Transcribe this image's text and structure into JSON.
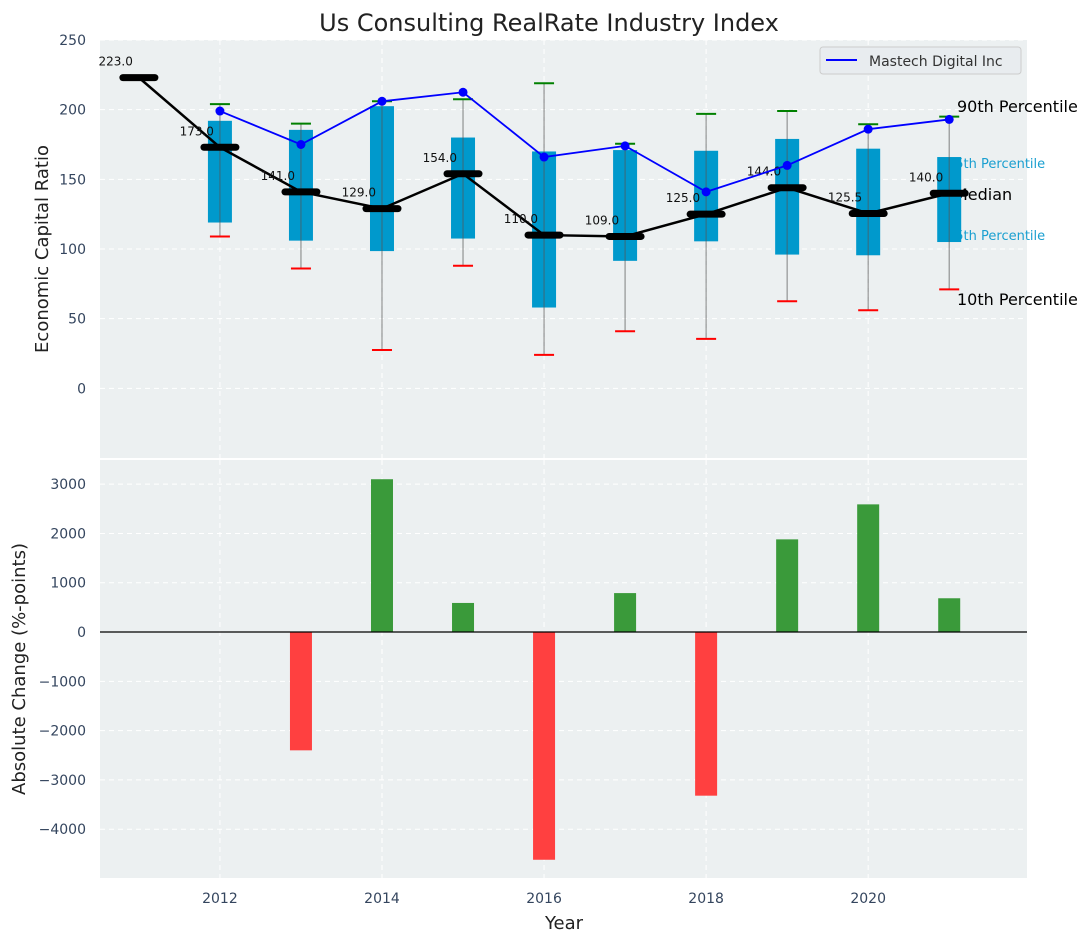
{
  "chart_data": [
    {
      "type": "box",
      "title": "Us Consulting RealRate Industry Index",
      "xlabel": "",
      "ylabel": "Economic Capital Ratio",
      "xlim": [
        2010.52,
        2021.96
      ],
      "ylim": [
        -50,
        250
      ],
      "yticks": [
        0,
        50,
        100,
        150,
        200,
        250
      ],
      "grid": true,
      "legend": {
        "placement": "top-right",
        "entries": [
          "Mastech Digital Inc"
        ]
      },
      "years": [
        2012,
        2013,
        2014,
        2015,
        2016,
        2017,
        2018,
        2019,
        2020,
        2021
      ],
      "p90": [
        204,
        190,
        206,
        207.5,
        219,
        175.5,
        197,
        199,
        189.5,
        195
      ],
      "p75": [
        192,
        185.5,
        202.5,
        180,
        170,
        171,
        170.5,
        179,
        172,
        166
      ],
      "p25": [
        119,
        106,
        98.5,
        107.5,
        58,
        91.5,
        105.5,
        96,
        95.5,
        105
      ],
      "p10": [
        109,
        86,
        27.5,
        88,
        24,
        41,
        35.5,
        62.5,
        56,
        71
      ],
      "median": {
        "years": [
          2011,
          2012,
          2013,
          2014,
          2015,
          2016,
          2017,
          2018,
          2019,
          2020,
          2021
        ],
        "values": [
          223.0,
          173.0,
          141.0,
          129.0,
          154.0,
          110.0,
          109.0,
          125.0,
          144.0,
          125.5,
          140.0
        ],
        "labels": [
          "223.0",
          "173.0",
          "141.0",
          "129.0",
          "154.0",
          "110.0",
          "109.0",
          "125.0",
          "144.0",
          "125.5",
          "140.0"
        ]
      },
      "series": [
        {
          "name": "Mastech Digital Inc",
          "years": [
            2012,
            2013,
            2014,
            2015,
            2016,
            2017,
            2018,
            2019,
            2020,
            2021
          ],
          "values": [
            199,
            175,
            206,
            212.5,
            166,
            174,
            141,
            160,
            186,
            193
          ],
          "color": "#0000ff"
        }
      ],
      "annotations": [
        "90th Percentile",
        "75th Percentile",
        "Median",
        "25th Percentile",
        "10th Percentile"
      ],
      "colors": {
        "box": "#0099cc",
        "p90_cap": "#008000",
        "p10_cap": "#ff0000",
        "median": "#000000",
        "background": "#ecf0f1"
      }
    },
    {
      "type": "bar",
      "xlabel": "Year",
      "ylabel": "Absolute Change (%-points)",
      "xlim": [
        2010.52,
        2021.96
      ],
      "ylim": [
        -4990,
        3490
      ],
      "yticks": [
        -4000,
        -3000,
        -2000,
        -1000,
        0,
        1000,
        2000,
        3000
      ],
      "xticks": [
        2012,
        2014,
        2016,
        2018,
        2020
      ],
      "grid": true,
      "categories": [
        2013,
        2014,
        2015,
        2016,
        2017,
        2018,
        2019,
        2020,
        2021
      ],
      "values": [
        -2400,
        3100,
        590,
        -4620,
        790,
        -3320,
        1880,
        2590,
        685
      ],
      "colors": {
        "positive": "#3a9a3a",
        "negative": "#ff4040"
      }
    }
  ]
}
